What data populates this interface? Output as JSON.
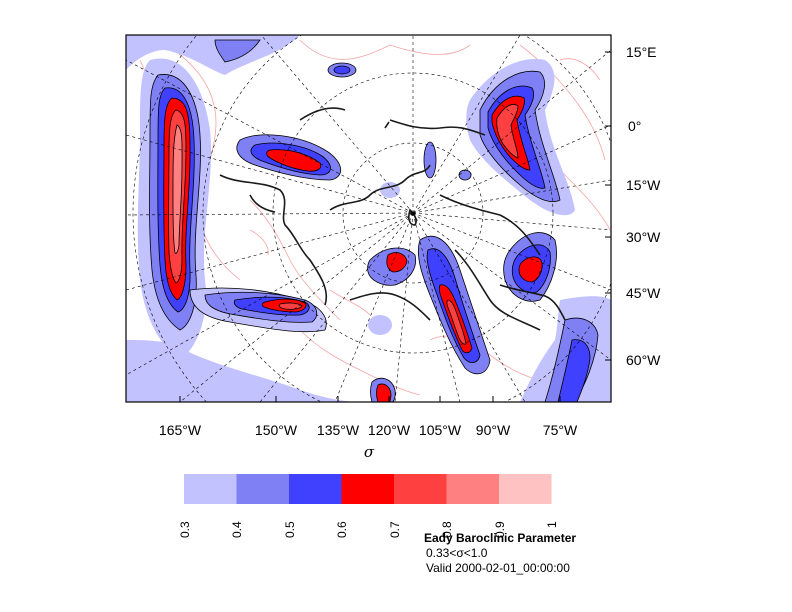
{
  "map": {
    "right_axis_labels": [
      "15°E",
      "0°",
      "15°W",
      "30°W",
      "45°W",
      "60°W"
    ],
    "bottom_axis_labels": [
      "165°W",
      "150°W",
      "135°W",
      "120°W",
      "105°W",
      "90°W",
      "75°W"
    ],
    "bottom_axis_variable": "σ"
  },
  "colorbar": {
    "ticks": [
      "0.3",
      "0.4",
      "0.5",
      "0.6",
      "0.7",
      "0.8",
      "0.9",
      "1"
    ],
    "colors": [
      "#c2c2ff",
      "#8080f5",
      "#4040ff",
      "#ff0000",
      "#ff4040",
      "#ff8080",
      "#ffc2c2"
    ]
  },
  "info": {
    "title": "Eady Baroclinic Parameter",
    "range": "0.33<σ<1.0",
    "valid": "Valid 2000-02-01_00:00:00"
  }
}
